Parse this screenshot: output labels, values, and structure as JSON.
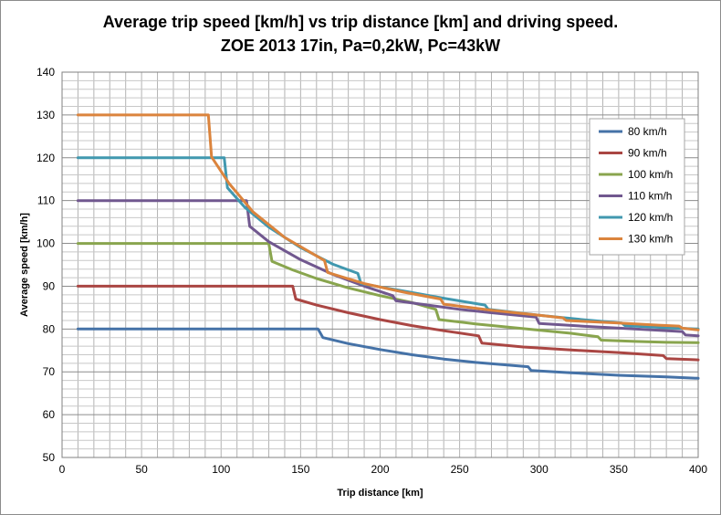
{
  "chart_data": {
    "type": "line",
    "title": "Average trip speed [km/h] vs trip distance [km] and driving speed.",
    "subtitle": "ZOE 2013 17in, Pa=0,2kW,  Pc=43kW",
    "xlabel": "Trip distance [km]",
    "ylabel": "Average speed [km/h]",
    "xlim": [
      0,
      400
    ],
    "ylim": [
      50,
      140
    ],
    "x_ticks": [
      0,
      50,
      100,
      150,
      200,
      250,
      300,
      350,
      400
    ],
    "y_ticks": [
      50,
      60,
      70,
      80,
      90,
      100,
      110,
      120,
      130,
      140
    ],
    "grid": true,
    "legend_position": "top-right",
    "series": [
      {
        "name": "80 km/h",
        "color": "#4572a7",
        "points": [
          [
            10,
            80
          ],
          [
            161,
            80
          ],
          [
            164,
            78
          ],
          [
            180,
            76.6
          ],
          [
            200,
            75.2
          ],
          [
            220,
            74
          ],
          [
            240,
            73
          ],
          [
            260,
            72.2
          ],
          [
            280,
            71.6
          ],
          [
            293,
            71.2
          ],
          [
            295,
            70.3
          ],
          [
            320,
            69.8
          ],
          [
            350,
            69.2
          ],
          [
            380,
            68.8
          ],
          [
            400,
            68.5
          ]
        ]
      },
      {
        "name": "90 km/h",
        "color": "#aa4643",
        "points": [
          [
            10,
            90
          ],
          [
            145,
            90
          ],
          [
            147,
            87
          ],
          [
            160,
            85.6
          ],
          [
            180,
            83.8
          ],
          [
            200,
            82.2
          ],
          [
            220,
            80.8
          ],
          [
            240,
            79.6
          ],
          [
            262,
            78.4
          ],
          [
            264,
            76.7
          ],
          [
            290,
            75.8
          ],
          [
            320,
            75.1
          ],
          [
            350,
            74.5
          ],
          [
            378,
            73.8
          ],
          [
            380,
            73.1
          ],
          [
            400,
            72.8
          ]
        ]
      },
      {
        "name": "100 km/h",
        "color": "#89a54e",
        "points": [
          [
            10,
            100
          ],
          [
            130,
            100
          ],
          [
            132,
            95.8
          ],
          [
            145,
            93.8
          ],
          [
            160,
            91.8
          ],
          [
            180,
            89.6
          ],
          [
            200,
            87.8
          ],
          [
            220,
            86.2
          ],
          [
            235,
            84.6
          ],
          [
            237,
            82.2
          ],
          [
            260,
            81.2
          ],
          [
            290,
            80.1
          ],
          [
            320,
            79
          ],
          [
            337,
            78.2
          ],
          [
            339,
            77.4
          ],
          [
            360,
            77.1
          ],
          [
            380,
            76.9
          ],
          [
            400,
            76.8
          ]
        ]
      },
      {
        "name": "110 km/h",
        "color": "#71588f",
        "points": [
          [
            10,
            110
          ],
          [
            116,
            110
          ],
          [
            118,
            104
          ],
          [
            130,
            100.4
          ],
          [
            150,
            96.2
          ],
          [
            170,
            92.8
          ],
          [
            190,
            90
          ],
          [
            208,
            87.8
          ],
          [
            210,
            86.6
          ],
          [
            230,
            85.6
          ],
          [
            250,
            84.6
          ],
          [
            270,
            83.8
          ],
          [
            298,
            82.8
          ],
          [
            300,
            81.3
          ],
          [
            330,
            80.6
          ],
          [
            360,
            80
          ],
          [
            390,
            79.4
          ],
          [
            392,
            78.6
          ],
          [
            400,
            78.4
          ]
        ]
      },
      {
        "name": "120 km/h",
        "color": "#4198af",
        "points": [
          [
            10,
            120
          ],
          [
            102,
            120
          ],
          [
            104,
            113
          ],
          [
            115,
            108.4
          ],
          [
            130,
            103.8
          ],
          [
            150,
            99
          ],
          [
            170,
            95.2
          ],
          [
            186,
            93
          ],
          [
            188,
            90.6
          ],
          [
            210,
            89.2
          ],
          [
            240,
            87.2
          ],
          [
            266,
            85.6
          ],
          [
            268,
            84.6
          ],
          [
            300,
            83.2
          ],
          [
            330,
            82.1
          ],
          [
            352,
            81.4
          ],
          [
            354,
            80.8
          ],
          [
            380,
            80.3
          ],
          [
            400,
            80
          ]
        ]
      },
      {
        "name": "130 km/h",
        "color": "#db843d",
        "points": [
          [
            10,
            130
          ],
          [
            92,
            130
          ],
          [
            94,
            120.2
          ],
          [
            105,
            114
          ],
          [
            120,
            107.4
          ],
          [
            140,
            101.4
          ],
          [
            165,
            96
          ],
          [
            167,
            93.2
          ],
          [
            190,
            90.6
          ],
          [
            215,
            88.6
          ],
          [
            238,
            87
          ],
          [
            240,
            85.8
          ],
          [
            270,
            84.4
          ],
          [
            300,
            83.2
          ],
          [
            315,
            82.6
          ],
          [
            317,
            82
          ],
          [
            350,
            81.4
          ],
          [
            375,
            80.9
          ],
          [
            388,
            80.7
          ],
          [
            390,
            80.2
          ],
          [
            400,
            79.8
          ]
        ]
      }
    ]
  }
}
